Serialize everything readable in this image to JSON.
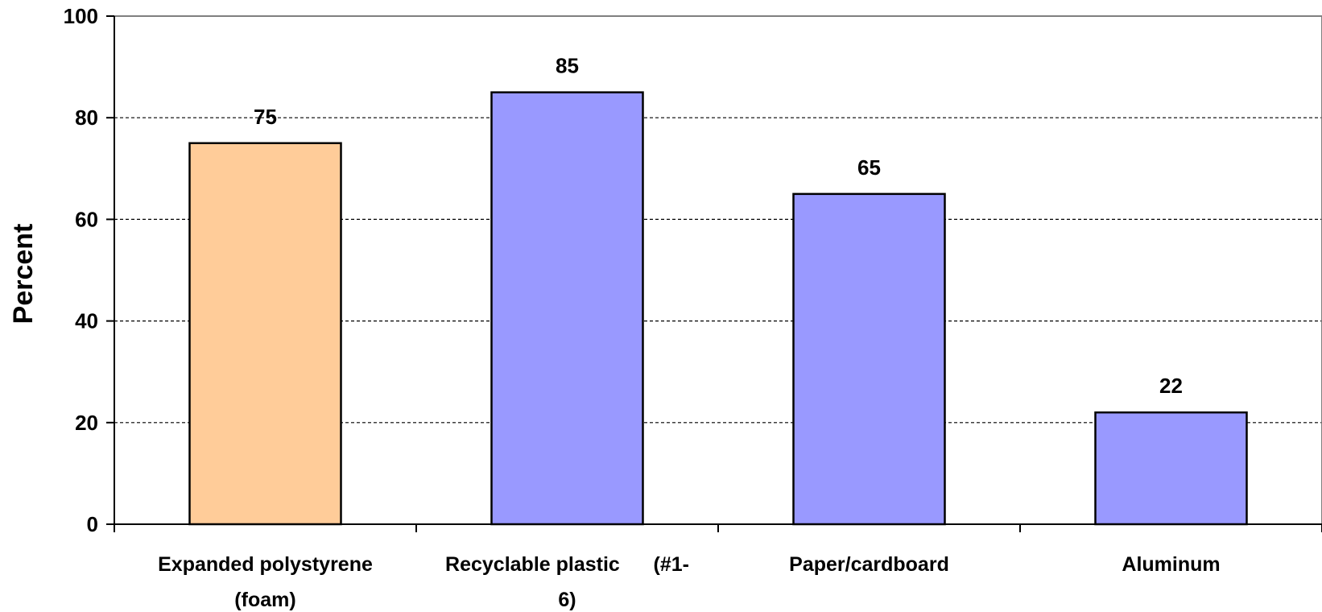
{
  "chart_data": {
    "type": "bar",
    "title": "",
    "xlabel": "",
    "ylabel": "Percent",
    "ylim": [
      0,
      100
    ],
    "yticks": [
      0,
      20,
      40,
      60,
      80,
      100
    ],
    "grid": true,
    "legend": "none",
    "categories": [
      [
        "Expanded polystyrene",
        "(foam)"
      ],
      [
        "Recyclable plastic      (#1-",
        "6)"
      ],
      [
        "Paper/cardboard"
      ],
      [
        "Aluminum"
      ]
    ],
    "values": [
      75,
      85,
      65,
      22
    ],
    "data_labels": [
      "75",
      "85",
      "65",
      "22"
    ],
    "colors": [
      "#FFCC99",
      "#9999FF",
      "#9999FF",
      "#9999FF"
    ],
    "gridline_color": "#000000",
    "bar_outline": "#000000"
  }
}
